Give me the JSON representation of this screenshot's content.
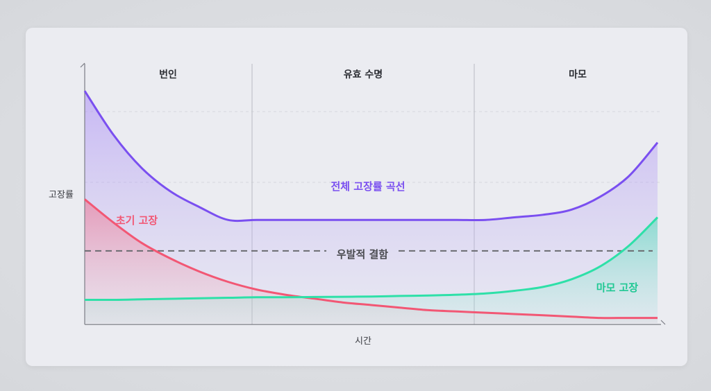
{
  "chart_data": {
    "type": "area",
    "title": "",
    "xlabel": "시간",
    "ylabel": "고장률",
    "phases": [
      "번인",
      "유효 수명",
      "마모"
    ],
    "grid": "horizontal-dashed",
    "x": [
      0,
      0.05,
      0.1,
      0.15,
      0.2,
      0.25,
      0.3,
      0.35,
      0.4,
      0.45,
      0.5,
      0.55,
      0.6,
      0.65,
      0.7,
      0.75,
      0.8,
      0.85,
      0.9,
      0.95,
      1.0
    ],
    "series": [
      {
        "name": "전체 고장률 곡선",
        "color": "#7a4ff0",
        "values": [
          0.9,
          0.73,
          0.6,
          0.51,
          0.45,
          0.4,
          0.4,
          0.4,
          0.4,
          0.4,
          0.4,
          0.4,
          0.4,
          0.4,
          0.4,
          0.41,
          0.42,
          0.44,
          0.49,
          0.57,
          0.7
        ]
      },
      {
        "name": "초기 고장",
        "color": "#f25774",
        "values": [
          0.48,
          0.39,
          0.31,
          0.25,
          0.2,
          0.16,
          0.13,
          0.11,
          0.095,
          0.08,
          0.07,
          0.06,
          0.05,
          0.045,
          0.04,
          0.035,
          0.03,
          0.025,
          0.02,
          0.02,
          0.02
        ]
      },
      {
        "name": "마모 고장",
        "color": "#2ee0a8",
        "values": [
          0.09,
          0.09,
          0.092,
          0.094,
          0.096,
          0.098,
          0.1,
          0.1,
          0.101,
          0.102,
          0.103,
          0.105,
          0.107,
          0.11,
          0.115,
          0.125,
          0.14,
          0.17,
          0.22,
          0.3,
          0.41
        ]
      }
    ],
    "reference_line": {
      "name": "우발적 결함",
      "value": 0.28,
      "style": "dashed",
      "color": "#6a6b70"
    },
    "xlim": [
      0,
      1
    ],
    "ylim": [
      0,
      1
    ]
  }
}
